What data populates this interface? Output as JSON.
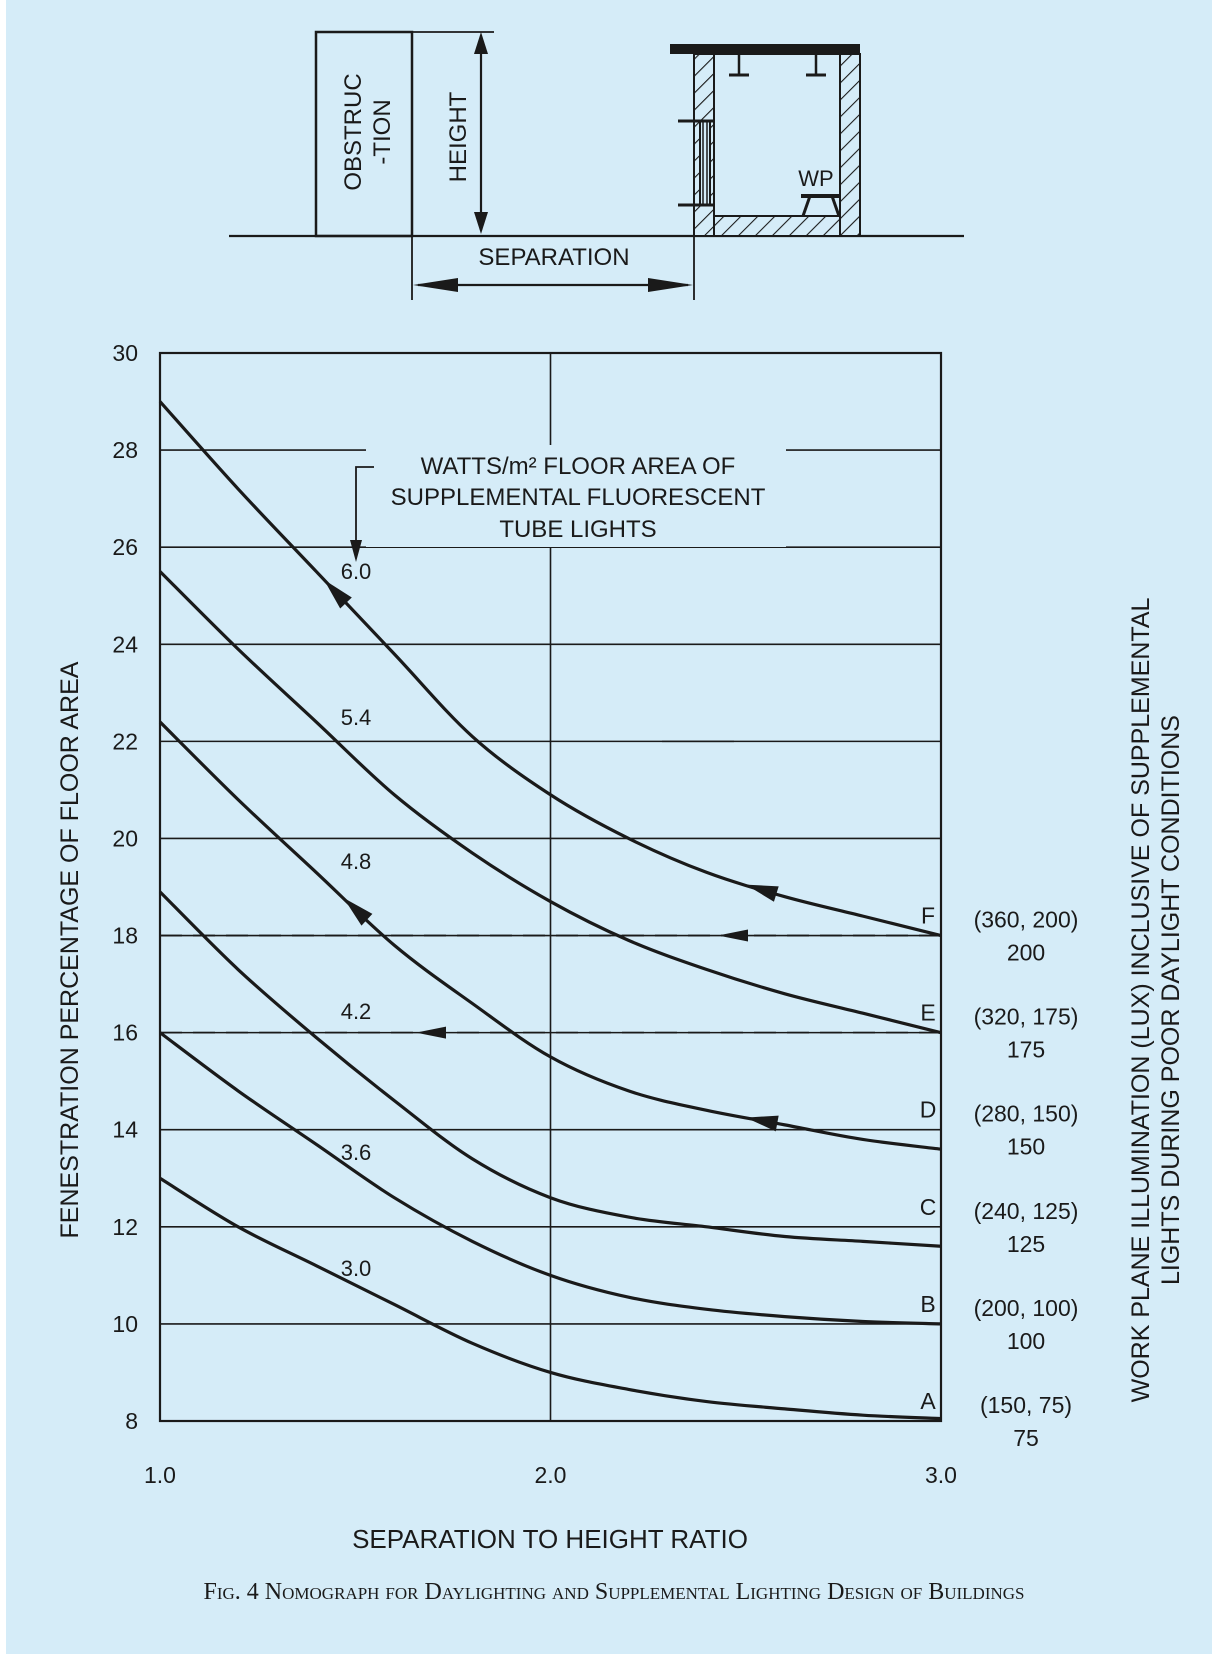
{
  "schematic": {
    "obstruction_label_1": "OBSTRUC",
    "obstruction_label_2": "-TION",
    "height_label": "HEIGHT",
    "separation_label": "SEPARATION",
    "wp_label": "WP"
  },
  "annotation": {
    "line1": "WATTS/m² FLOOR AREA OF",
    "line2": "SUPPLEMENTAL FLUORESCENT",
    "line3": "TUBE LIGHTS"
  },
  "caption": "Fig. 4 Nomograph for Daylighting and Supplemental Lighting Design of Buildings",
  "colors": {
    "background": "#d5ecf8",
    "ink": "#1a1a1a"
  },
  "chart_data": {
    "type": "line",
    "xlabel": "SEPARATION TO HEIGHT RATIO",
    "ylabel": "FENESTRATION PERCENTAGE OF FLOOR AREA",
    "y2label_line1": "WORK PLANE ILLUMINATION (LUX) INCLUSIVE OF SUPPLEMENTAL",
    "y2label_line2": "LIGHTS DURING POOR DAYLIGHT CONDITIONS",
    "xlim": [
      1.0,
      3.0
    ],
    "ylim": [
      8,
      30
    ],
    "x_ticks": [
      1.0,
      2.0,
      3.0
    ],
    "x_tick_labels": [
      "1.0",
      "2.0",
      "3.0"
    ],
    "y_ticks": [
      8,
      10,
      12,
      14,
      16,
      18,
      20,
      22,
      24,
      26,
      28,
      30
    ],
    "y_tick_labels": [
      "8",
      "10",
      "12",
      "14",
      "16",
      "18",
      "20",
      "22",
      "24",
      "26",
      "28",
      "30"
    ],
    "grid": "major lines at every y tick and at x = 2.0",
    "series": [
      {
        "name": "3.0",
        "x": [
          1.0,
          1.2,
          1.4,
          1.6,
          1.8,
          2.0,
          2.2,
          2.4,
          2.6,
          2.8,
          3.0
        ],
        "y": [
          13.0,
          12.0,
          11.2,
          10.4,
          9.6,
          9.0,
          8.65,
          8.4,
          8.25,
          8.12,
          8.05
        ]
      },
      {
        "name": "3.6",
        "x": [
          1.0,
          1.2,
          1.4,
          1.6,
          1.8,
          2.0,
          2.2,
          2.4,
          2.6,
          2.8,
          3.0
        ],
        "y": [
          16.0,
          14.8,
          13.7,
          12.6,
          11.7,
          11.0,
          10.55,
          10.3,
          10.15,
          10.05,
          10.0
        ]
      },
      {
        "name": "4.2",
        "x": [
          1.0,
          1.2,
          1.4,
          1.6,
          1.8,
          2.0,
          2.2,
          2.4,
          2.6,
          2.8,
          3.0
        ],
        "y": [
          18.9,
          17.3,
          15.9,
          14.6,
          13.4,
          12.6,
          12.2,
          12.0,
          11.8,
          11.7,
          11.6
        ]
      },
      {
        "name": "4.8",
        "x": [
          1.0,
          1.2,
          1.4,
          1.6,
          1.8,
          2.0,
          2.2,
          2.4,
          2.6,
          2.8,
          3.0
        ],
        "y": [
          22.4,
          20.8,
          19.3,
          17.8,
          16.6,
          15.5,
          14.8,
          14.4,
          14.1,
          13.8,
          13.6
        ]
      },
      {
        "name": "5.4",
        "x": [
          1.0,
          1.2,
          1.4,
          1.6,
          1.8,
          2.0,
          2.2,
          2.4,
          2.6,
          2.8,
          3.0
        ],
        "y": [
          25.5,
          23.9,
          22.4,
          20.9,
          19.7,
          18.7,
          17.9,
          17.3,
          16.8,
          16.4,
          16.0
        ]
      },
      {
        "name": "6.0",
        "x": [
          1.0,
          1.2,
          1.4,
          1.6,
          1.8,
          2.0,
          2.2,
          2.4,
          2.6,
          2.8,
          3.0
        ],
        "y": [
          29.0,
          27.2,
          25.5,
          23.8,
          22.1,
          20.9,
          20.0,
          19.3,
          18.8,
          18.4,
          18.0
        ]
      }
    ],
    "reference_lines": [
      {
        "y": 18,
        "style": "dashed"
      },
      {
        "y": 16,
        "style": "dashed"
      }
    ],
    "right_labels": [
      {
        "letter": "A",
        "pair": "(150, 75)",
        "value": "75",
        "y": 8
      },
      {
        "letter": "B",
        "pair": "(200, 100)",
        "value": "100",
        "y": 10
      },
      {
        "letter": "C",
        "pair": "(240, 125)",
        "value": "125",
        "y": 12
      },
      {
        "letter": "D",
        "pair": "(280, 150)",
        "value": "150",
        "y": 14
      },
      {
        "letter": "E",
        "pair": "(320, 175)",
        "value": "175",
        "y": 16
      },
      {
        "letter": "F",
        "pair": "(360, 200)",
        "value": "200",
        "y": 18
      }
    ]
  }
}
